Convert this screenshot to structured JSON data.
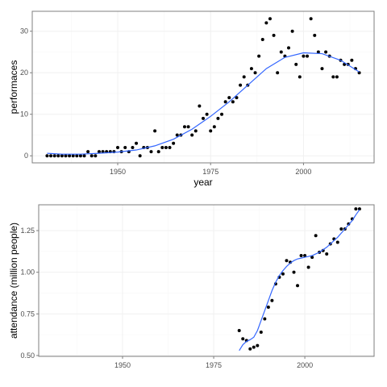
{
  "chart_data": [
    {
      "type": "scatter",
      "xlabel": "year",
      "ylabel": "performaces",
      "xlim": [
        1927,
        2019
      ],
      "ylim": [
        -1.7,
        34.8
      ],
      "x_ticks": [
        1950,
        1975,
        2000
      ],
      "x_tick_labels": [
        "1950",
        "1975",
        "2000"
      ],
      "y_ticks": [
        0,
        10,
        20,
        30
      ],
      "y_tick_labels": [
        "0",
        "10",
        "20",
        "30"
      ],
      "grid": true,
      "legend": "none",
      "colors": {
        "points": "#000000",
        "smooth": "#3366ff",
        "grid": "#f0f0f0",
        "border": "#7f7f7f"
      },
      "points": [
        [
          1931,
          0
        ],
        [
          1932,
          0
        ],
        [
          1933,
          0
        ],
        [
          1934,
          0
        ],
        [
          1935,
          0
        ],
        [
          1936,
          0
        ],
        [
          1937,
          0
        ],
        [
          1938,
          0
        ],
        [
          1939,
          0
        ],
        [
          1940,
          0
        ],
        [
          1941,
          0
        ],
        [
          1942,
          1
        ],
        [
          1943,
          0
        ],
        [
          1944,
          0
        ],
        [
          1945,
          1
        ],
        [
          1946,
          1
        ],
        [
          1947,
          1
        ],
        [
          1948,
          1
        ],
        [
          1949,
          1
        ],
        [
          1950,
          2
        ],
        [
          1951,
          1
        ],
        [
          1952,
          2
        ],
        [
          1953,
          1
        ],
        [
          1954,
          2
        ],
        [
          1955,
          3
        ],
        [
          1956,
          0
        ],
        [
          1957,
          2
        ],
        [
          1958,
          2
        ],
        [
          1959,
          1
        ],
        [
          1960,
          6
        ],
        [
          1961,
          1
        ],
        [
          1962,
          2
        ],
        [
          1963,
          2
        ],
        [
          1964,
          2
        ],
        [
          1965,
          3
        ],
        [
          1966,
          5
        ],
        [
          1967,
          5
        ],
        [
          1968,
          7
        ],
        [
          1969,
          7
        ],
        [
          1970,
          5
        ],
        [
          1971,
          6
        ],
        [
          1972,
          12
        ],
        [
          1973,
          9
        ],
        [
          1974,
          10
        ],
        [
          1975,
          6
        ],
        [
          1976,
          7
        ],
        [
          1977,
          9
        ],
        [
          1978,
          10
        ],
        [
          1979,
          13
        ],
        [
          1980,
          14
        ],
        [
          1981,
          13
        ],
        [
          1982,
          14
        ],
        [
          1983,
          17
        ],
        [
          1984,
          19
        ],
        [
          1985,
          17
        ],
        [
          1986,
          21
        ],
        [
          1987,
          20
        ],
        [
          1988,
          24
        ],
        [
          1989,
          28
        ],
        [
          1990,
          32
        ],
        [
          1991,
          33
        ],
        [
          1992,
          29
        ],
        [
          1993,
          20
        ],
        [
          1994,
          25
        ],
        [
          1995,
          24
        ],
        [
          1996,
          26
        ],
        [
          1997,
          30
        ],
        [
          1998,
          22
        ],
        [
          1999,
          19
        ],
        [
          2000,
          24
        ],
        [
          2001,
          24
        ],
        [
          2002,
          33
        ],
        [
          2003,
          29
        ],
        [
          2004,
          25
        ],
        [
          2005,
          21
        ],
        [
          2006,
          25
        ],
        [
          2007,
          24
        ],
        [
          2008,
          19
        ],
        [
          2009,
          19
        ],
        [
          2010,
          23
        ],
        [
          2011,
          22
        ],
        [
          2012,
          22
        ],
        [
          2013,
          23
        ],
        [
          2014,
          21
        ],
        [
          2015,
          20
        ]
      ],
      "smooth": [
        [
          1931,
          0.6
        ],
        [
          1935,
          0.4
        ],
        [
          1940,
          0.4
        ],
        [
          1945,
          0.6
        ],
        [
          1950,
          0.9
        ],
        [
          1955,
          1.4
        ],
        [
          1960,
          2.4
        ],
        [
          1965,
          4.0
        ],
        [
          1970,
          6.4
        ],
        [
          1975,
          9.5
        ],
        [
          1980,
          13.0
        ],
        [
          1985,
          17.0
        ],
        [
          1990,
          21.0
        ],
        [
          1995,
          23.7
        ],
        [
          2000,
          24.8
        ],
        [
          2005,
          24.6
        ],
        [
          2010,
          23.0
        ],
        [
          2015,
          20.2
        ]
      ]
    },
    {
      "type": "scatter",
      "xlabel": "",
      "ylabel": "attendance (million people)",
      "xlim": [
        1927,
        2019
      ],
      "ylim": [
        0.495,
        1.405
      ],
      "x_ticks": [
        1950,
        1975,
        2000
      ],
      "x_tick_labels": [
        "1950",
        "1975",
        "2000"
      ],
      "y_ticks": [
        0.5,
        0.75,
        1.0,
        1.25
      ],
      "y_tick_labels": [
        "0.50",
        "0.75",
        "1.00",
        "1.25"
      ],
      "grid": true,
      "legend": "none",
      "colors": {
        "points": "#000000",
        "smooth": "#3366ff",
        "grid": "#f0f0f0",
        "border": "#7f7f7f"
      },
      "points": [
        [
          1982,
          0.65
        ],
        [
          1983,
          0.6
        ],
        [
          1984,
          0.59
        ],
        [
          1985,
          0.54
        ],
        [
          1986,
          0.55
        ],
        [
          1987,
          0.56
        ],
        [
          1988,
          0.64
        ],
        [
          1989,
          0.72
        ],
        [
          1990,
          0.79
        ],
        [
          1991,
          0.83
        ],
        [
          1992,
          0.93
        ],
        [
          1993,
          0.97
        ],
        [
          1994,
          0.99
        ],
        [
          1995,
          1.07
        ],
        [
          1996,
          1.06
        ],
        [
          1997,
          1.0
        ],
        [
          1998,
          0.92
        ],
        [
          1999,
          1.1
        ],
        [
          2000,
          1.1
        ],
        [
          2001,
          1.03
        ],
        [
          2002,
          1.09
        ],
        [
          2003,
          1.22
        ],
        [
          2004,
          1.12
        ],
        [
          2005,
          1.13
        ],
        [
          2006,
          1.11
        ],
        [
          2007,
          1.17
        ],
        [
          2008,
          1.2
        ],
        [
          2009,
          1.18
        ],
        [
          2010,
          1.26
        ],
        [
          2011,
          1.26
        ],
        [
          2012,
          1.29
        ],
        [
          2013,
          1.32
        ],
        [
          2014,
          1.38
        ],
        [
          2015,
          1.38
        ]
      ],
      "smooth": [
        [
          1982,
          0.53
        ],
        [
          1983,
          0.565
        ],
        [
          1984,
          0.585
        ],
        [
          1985,
          0.595
        ],
        [
          1986,
          0.61
        ],
        [
          1987,
          0.65
        ],
        [
          1988,
          0.71
        ],
        [
          1989,
          0.77
        ],
        [
          1990,
          0.83
        ],
        [
          1991,
          0.89
        ],
        [
          1992,
          0.94
        ],
        [
          1993,
          0.98
        ],
        [
          1994,
          1.01
        ],
        [
          1995,
          1.035
        ],
        [
          1996,
          1.055
        ],
        [
          1997,
          1.07
        ],
        [
          1998,
          1.08
        ],
        [
          1999,
          1.085
        ],
        [
          2000,
          1.09
        ],
        [
          2001,
          1.095
        ],
        [
          2002,
          1.1
        ],
        [
          2003,
          1.11
        ],
        [
          2004,
          1.12
        ],
        [
          2005,
          1.135
        ],
        [
          2006,
          1.15
        ],
        [
          2007,
          1.17
        ],
        [
          2008,
          1.19
        ],
        [
          2009,
          1.21
        ],
        [
          2010,
          1.235
        ],
        [
          2011,
          1.26
        ],
        [
          2012,
          1.285
        ],
        [
          2013,
          1.31
        ],
        [
          2014,
          1.345
        ],
        [
          2015,
          1.375
        ]
      ]
    }
  ]
}
